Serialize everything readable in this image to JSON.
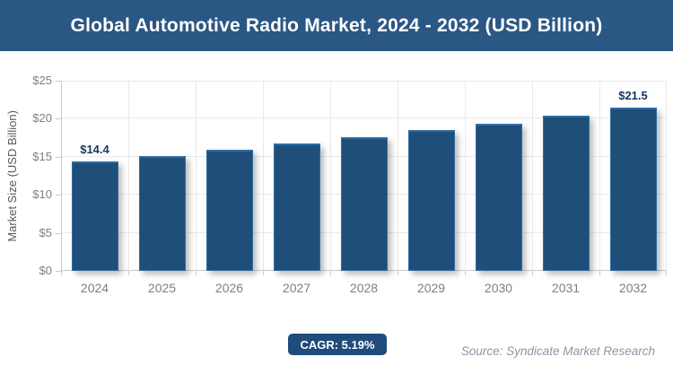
{
  "header": {
    "title": "Global Automotive Radio Market, 2024 - 2032 (USD Billion)"
  },
  "chart_data": {
    "type": "bar",
    "title": "Global Automotive Radio Market, 2024 - 2032 (USD Billion)",
    "categories": [
      "2024",
      "2025",
      "2026",
      "2027",
      "2028",
      "2029",
      "2030",
      "2031",
      "2032"
    ],
    "values": [
      14.4,
      15.1,
      15.9,
      16.7,
      17.6,
      18.5,
      19.4,
      20.4,
      21.5
    ],
    "bar_labels": [
      "$14.4",
      "",
      "",
      "",
      "",
      "",
      "",
      "",
      "$21.5"
    ],
    "ylabel": "Market Size (USD Billion)",
    "xlabel": "",
    "ylim": [
      0,
      25
    ],
    "yticks": [
      {
        "value": 0,
        "label": "$0"
      },
      {
        "value": 5,
        "label": "$5"
      },
      {
        "value": 10,
        "label": "$10"
      },
      {
        "value": 15,
        "label": "$15"
      },
      {
        "value": 20,
        "label": "$20"
      },
      {
        "value": 25,
        "label": "$25"
      }
    ],
    "grid": "on",
    "legend": "none",
    "bar_color": "#1F4E79"
  },
  "footer": {
    "cagr_label": "CAGR: 5.19%",
    "source": "Source: Syndicate Market Research"
  },
  "colors": {
    "header_bg": "#2A5784",
    "bar_fill": "#1F4E79",
    "bar_edge": "#2E6DA4",
    "badge_bg": "#1F4C7C",
    "value_label": "#17375E",
    "grid_line": "#E9E9E9",
    "axis_line": "#C9C9C9",
    "tick_label": "#7F7F7F",
    "axis_title": "#595959",
    "source_text": "#8C96A6"
  }
}
